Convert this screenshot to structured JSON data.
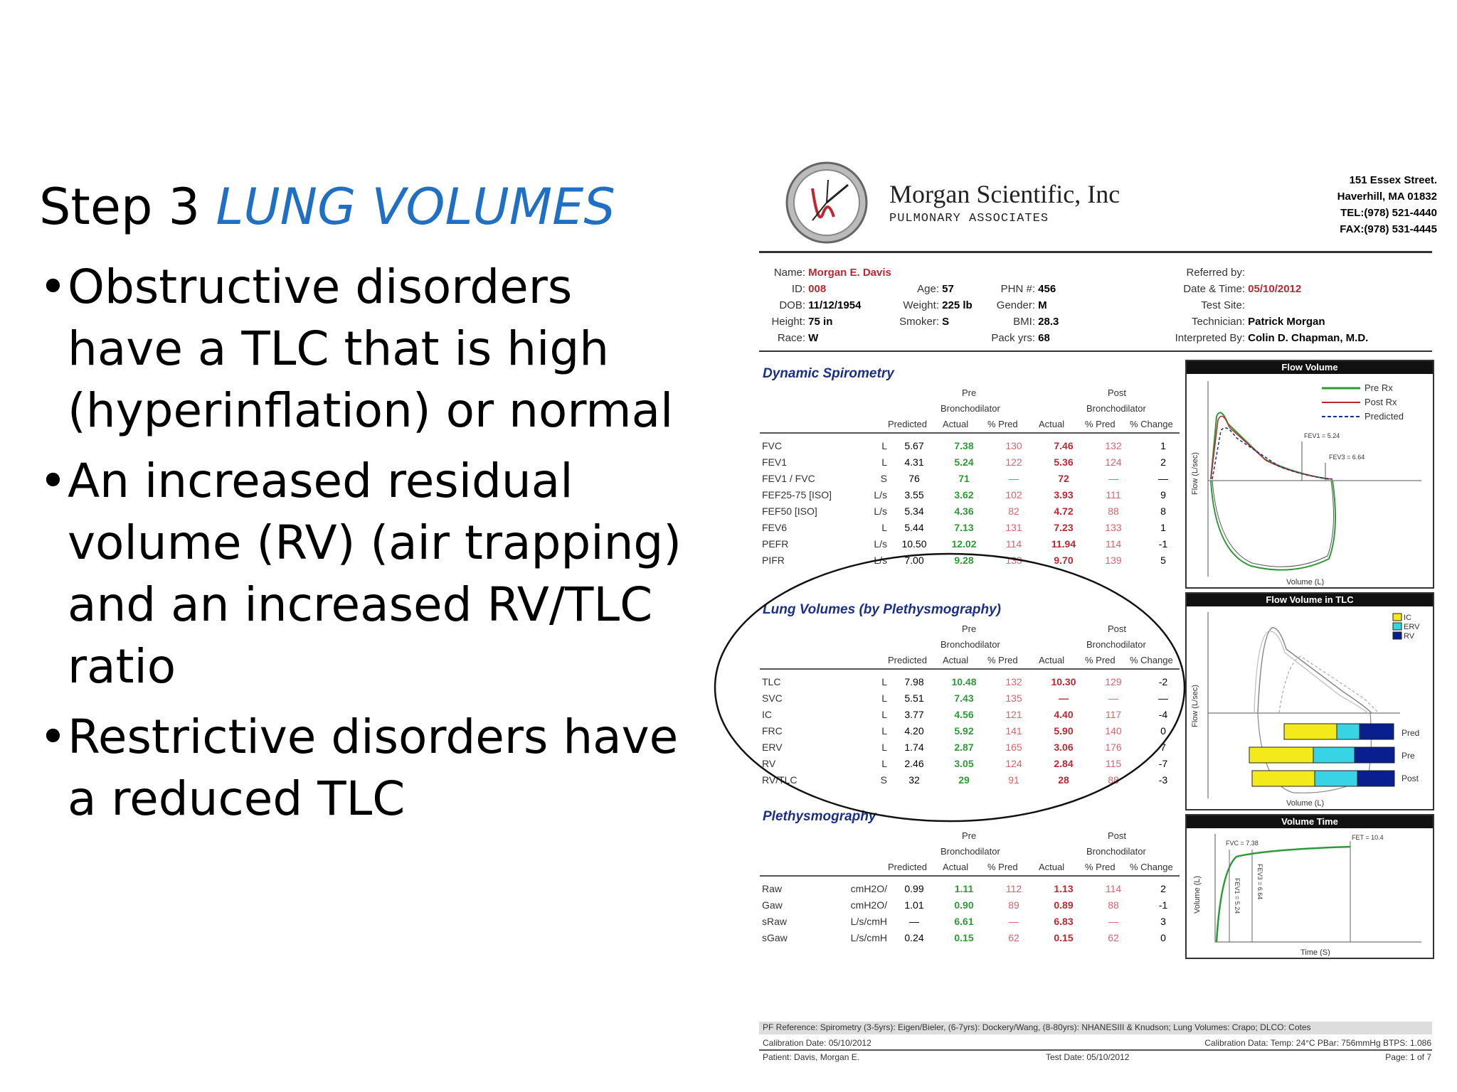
{
  "slide": {
    "heading_step": "Step  3 ",
    "heading_accent": "LUNG VOLUMES",
    "bullets": [
      "Obstructive disorders have a TLC that is high (hyperinflation) or normal",
      "An increased residual volume (RV) (air trapping) and an increased RV/TLC ratio",
      "Restrictive disorders have a reduced TLC"
    ]
  },
  "report": {
    "company": "Morgan Scientific, Inc",
    "subtitle": "PULMONARY ASSOCIATES",
    "address": [
      "151 Essex Street.",
      "Haverhill, MA 01832",
      "TEL:(978) 521-4440",
      "FAX:(978) 531-4445"
    ],
    "patient": {
      "name_label": "Name:",
      "name": "Morgan E. Davis",
      "id_label": "ID:",
      "id": "008",
      "dob_label": "DOB:",
      "dob": "11/12/1954",
      "height_label": "Height:",
      "height": "75 in",
      "race_label": "Race:",
      "race": "W",
      "age_label": "Age:",
      "age": "57",
      "weight_label": "Weight:",
      "weight": "225 lb",
      "smoker_label": "Smoker:",
      "smoker": "S",
      "phn_label": "PHN #:",
      "phn": "456",
      "gender_label": "Gender:",
      "gender": "M",
      "bmi_label": "BMI:",
      "bmi": "28.3",
      "pack_label": "Pack yrs:",
      "pack": "68",
      "referred_label": "Referred by:",
      "date_label": "Date & Time:",
      "date": "05/10/2012",
      "site_label": "Test Site:",
      "tech_label": "Technician:",
      "tech": "Patrick Morgan",
      "interp_label": "Interpreted By:",
      "interp": "Colin D. Chapman, M.D."
    },
    "col_headers": {
      "pre": "Pre",
      "post": "Post",
      "broncho": "Bronchodilator",
      "predicted": "Predicted",
      "actual": "Actual",
      "pct_pred": "% Pred",
      "pct_change": "% Change"
    },
    "dynamic": {
      "title": "Dynamic Spirometry",
      "rows": [
        {
          "name": "FVC",
          "unit": "L",
          "pred": "5.67",
          "actual": "7.38",
          "pct": "130",
          "post_actual": "7.46",
          "post_pct": "132",
          "change": "1"
        },
        {
          "name": "FEV1",
          "unit": "L",
          "pred": "4.31",
          "actual": "5.24",
          "pct": "122",
          "post_actual": "5.36",
          "post_pct": "124",
          "change": "2"
        },
        {
          "name": "FEV1 / FVC",
          "unit": "S",
          "pred": "76",
          "actual": "71",
          "pct": "—",
          "post_actual": "72",
          "post_pct": "—",
          "change": "—"
        },
        {
          "name": "FEF25-75 [ISO]",
          "unit": "L/s",
          "pred": "3.55",
          "actual": "3.62",
          "pct": "102",
          "post_actual": "3.93",
          "post_pct": "111",
          "change": "9"
        },
        {
          "name": "FEF50 [ISO]",
          "unit": "L/s",
          "pred": "5.34",
          "actual": "4.36",
          "pct": "82",
          "post_actual": "4.72",
          "post_pct": "88",
          "change": "8"
        },
        {
          "name": "FEV6",
          "unit": "L",
          "pred": "5.44",
          "actual": "7.13",
          "pct": "131",
          "post_actual": "7.23",
          "post_pct": "133",
          "change": "1"
        },
        {
          "name": "PEFR",
          "unit": "L/s",
          "pred": "10.50",
          "actual": "12.02",
          "pct": "114",
          "post_actual": "11.94",
          "post_pct": "114",
          "change": "-1"
        },
        {
          "name": "PIFR",
          "unit": "L/s",
          "pred": "7.00",
          "actual": "9.28",
          "pct": "133",
          "post_actual": "9.70",
          "post_pct": "139",
          "change": "5"
        }
      ]
    },
    "lung_volumes": {
      "title": "Lung Volumes (by Plethysmography)",
      "rows": [
        {
          "name": "TLC",
          "unit": "L",
          "pred": "7.98",
          "actual": "10.48",
          "pct": "132",
          "post_actual": "10.30",
          "post_pct": "129",
          "change": "-2"
        },
        {
          "name": "SVC",
          "unit": "L",
          "pred": "5.51",
          "actual": "7.43",
          "pct": "135",
          "post_actual": "—",
          "post_pct": "—",
          "change": "—"
        },
        {
          "name": "IC",
          "unit": "L",
          "pred": "3.77",
          "actual": "4.56",
          "pct": "121",
          "post_actual": "4.40",
          "post_pct": "117",
          "change": "-4"
        },
        {
          "name": "FRC",
          "unit": "L",
          "pred": "4.20",
          "actual": "5.92",
          "pct": "141",
          "post_actual": "5.90",
          "post_pct": "140",
          "change": "0"
        },
        {
          "name": "ERV",
          "unit": "L",
          "pred": "1.74",
          "actual": "2.87",
          "pct": "165",
          "post_actual": "3.06",
          "post_pct": "176",
          "change": "7"
        },
        {
          "name": "RV",
          "unit": "L",
          "pred": "2.46",
          "actual": "3.05",
          "pct": "124",
          "post_actual": "2.84",
          "post_pct": "115",
          "change": "-7"
        },
        {
          "name": "RV/TLC",
          "unit": "S",
          "pred": "32",
          "actual": "29",
          "pct": "91",
          "post_actual": "28",
          "post_pct": "88",
          "change": "-3"
        }
      ]
    },
    "pleth": {
      "title": "Plethysmography",
      "rows": [
        {
          "name": "Raw",
          "unit": "cmH2O/",
          "pred": "0.99",
          "actual": "1.11",
          "pct": "112",
          "post_actual": "1.13",
          "post_pct": "114",
          "change": "2"
        },
        {
          "name": "Gaw",
          "unit": "cmH2O/",
          "pred": "1.01",
          "actual": "0.90",
          "pct": "89",
          "post_actual": "0.89",
          "post_pct": "88",
          "change": "-1"
        },
        {
          "name": "sRaw",
          "unit": "L/s/cmH",
          "pred": "—",
          "actual": "6.61",
          "pct": "—",
          "post_actual": "6.83",
          "post_pct": "—",
          "change": "3"
        },
        {
          "name": "sGaw",
          "unit": "L/s/cmH",
          "pred": "0.24",
          "actual": "0.15",
          "pct": "62",
          "post_actual": "0.15",
          "post_pct": "62",
          "change": "0"
        }
      ]
    },
    "panels": {
      "flow_volume": {
        "title": "Flow Volume",
        "legend": [
          "Pre Rx",
          "Post Rx",
          "Predicted"
        ],
        "xlabel": "Volume (L)",
        "ylabel": "Flow (L/sec)",
        "ann1": "FEV1 = 5.24",
        "ann2": "FEV3 = 6.64"
      },
      "flow_volume_tlc": {
        "title": "Flow Volume in TLC",
        "legend": [
          "IC",
          "ERV",
          "RV"
        ],
        "bar_labels": [
          "Pred",
          "Pre",
          "Post"
        ],
        "xlabel": "Volume (L)",
        "ylabel": "Flow (L/sec)"
      },
      "volume_time": {
        "title": "Volume Time",
        "xlabel": "Time (S)",
        "ylabel": "Volume (L)",
        "ann_fvc": "FVC = 7.38",
        "ann_fet": "FET = 10.4",
        "ann_fev1": "FEV1 = 5.24",
        "ann_fev3": "FEV3 = 6.64"
      }
    },
    "footer": {
      "reference": "PF Reference: Spirometry (3-5yrs): Eigen/Bieler, (6-7yrs): Dockery/Wang, (8-80yrs): NHANESIII & Knudson; Lung Volumes: Crapo; DLCO: Cotes",
      "calib_left": "Calibration Date:  05/10/2012",
      "calib_right": "Calibration Data:   Temp: 24°C  PBar: 756mmHg  BTPS: 1.086",
      "patient": "Patient:     Davis, Morgan E.",
      "test_date": "Test Date:  05/10/2012",
      "page": "Page: 1 of 7"
    }
  }
}
